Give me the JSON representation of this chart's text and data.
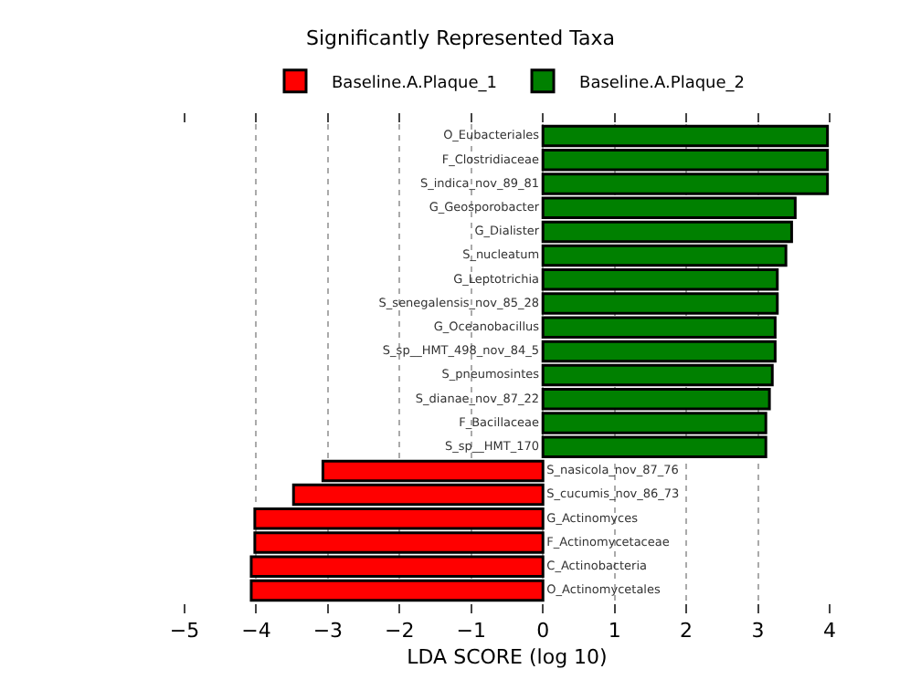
{
  "chart_data": {
    "type": "bar",
    "orientation": "horizontal",
    "stacked": true,
    "title": "Significantly Represented Taxa",
    "xlabel": "LDA SCORE (log 10)",
    "categories": [
      "O_Eubacteriales",
      "F_Clostridiaceae",
      "S_indica_nov_89_81",
      "G_Geosporobacter",
      "G_Dialister",
      "S_nucleatum",
      "G_Leptotrichia",
      "S_senegalensis_nov_85_28",
      "G_Oceanobacillus",
      "S_sp__HMT_498_nov_84_5",
      "S_pneumosintes",
      "S_dianae_nov_87_22",
      "F_Bacillaceae",
      "S_sp__HMT_170",
      "S_nasicola_nov_87_76",
      "S_cucumis_nov_86_73",
      "G_Actinomyces",
      "F_Actinomycetaceae",
      "C_Actinobacteria",
      "O_Actinomycetales"
    ],
    "series": [
      {
        "name": "Baseline.A.Plaque_1",
        "color": "#ff0000",
        "values": [
          null,
          null,
          null,
          null,
          null,
          null,
          null,
          null,
          null,
          null,
          null,
          null,
          null,
          null,
          -3.07,
          -3.48,
          -4.02,
          -4.02,
          -4.07,
          -4.07
        ]
      },
      {
        "name": "Baseline.A.Plaque_2",
        "color": "#008000",
        "values": [
          3.97,
          3.97,
          3.97,
          3.52,
          3.47,
          3.39,
          3.27,
          3.27,
          3.24,
          3.24,
          3.2,
          3.16,
          3.11,
          3.11,
          null,
          null,
          null,
          null,
          null,
          null
        ]
      }
    ],
    "xlim": [
      -5,
      4
    ],
    "xticks": [
      -5,
      -4,
      -3,
      -2,
      -1,
      0,
      1,
      2,
      3,
      4
    ],
    "grid": "x",
    "legend": "top"
  }
}
